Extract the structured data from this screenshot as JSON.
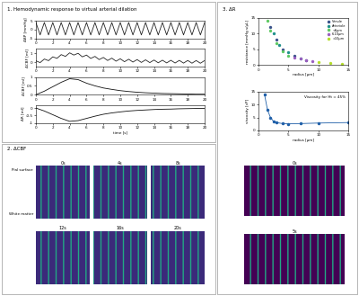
{
  "panels": {
    "p1": "1. Hemodynamic response to virtual arterial dilation",
    "p2": "2. ΔCBF",
    "p3": "3. ΔR"
  },
  "images": {
    "p2_titles": [
      "0s",
      "4s",
      "8s",
      "12s",
      "16s",
      "20s"
    ],
    "p2_labels": [
      "Pial surface",
      "White matter"
    ],
    "p3_titles": [
      "0s",
      "5s"
    ]
  },
  "chart_data": [
    {
      "type": "line",
      "y_label": "ΔBP [mmHg]",
      "color": "#222222",
      "x": [
        0,
        0.5,
        1,
        1.5,
        2,
        2.5,
        3,
        3.5,
        4,
        4.5,
        5,
        5.5,
        6,
        6.5,
        7,
        7.5,
        8,
        8.5,
        9,
        9.5,
        10,
        10.5,
        11,
        11.5,
        12,
        12.5,
        13,
        13.5,
        14,
        14.5,
        15,
        15.5,
        16,
        16.5,
        17,
        17.5,
        18,
        18.5,
        19,
        19.5,
        20
      ],
      "values": [
        4,
        -3,
        4,
        -3,
        4,
        -3,
        4,
        -3,
        4,
        -3,
        4,
        -3,
        4,
        -3,
        4,
        -3,
        4,
        -3,
        4,
        -3,
        4,
        -3,
        4,
        -3,
        4,
        -3,
        4,
        -3,
        4,
        -3,
        4,
        -3,
        4,
        -3,
        4,
        -3,
        4,
        -3,
        4,
        -3,
        4
      ],
      "xlim": [
        0,
        20
      ],
      "xticks": [
        0,
        2,
        4,
        6,
        8,
        10,
        12,
        14,
        16,
        18,
        20
      ],
      "ylim": [
        -5,
        5
      ],
      "yticks": [
        -5,
        0,
        5
      ]
    },
    {
      "type": "line",
      "y_label": "ΔCBF [ml]",
      "color": "#222222",
      "x": [
        0,
        0.5,
        1,
        1.5,
        2,
        2.5,
        3,
        3.5,
        4,
        4.5,
        5,
        5.5,
        6,
        6.5,
        7,
        7.5,
        8,
        8.5,
        9,
        9.5,
        10,
        10.5,
        11,
        11.5,
        12,
        12.5,
        13,
        13.5,
        14,
        14.5,
        15,
        15.5,
        16,
        16.5,
        17,
        17.5,
        18,
        18.5,
        19,
        19.5,
        20
      ],
      "values": [
        0.15,
        -0.05,
        0.35,
        0.17,
        0.6,
        0.43,
        0.85,
        0.65,
        1.05,
        0.8,
        1.0,
        0.6,
        0.8,
        0.42,
        0.65,
        0.29,
        0.53,
        0.19,
        0.45,
        0.11,
        0.38,
        0.05,
        0.33,
        0.01,
        0.29,
        -0.03,
        0.26,
        -0.05,
        0.24,
        -0.07,
        0.22,
        -0.085,
        0.21,
        -0.095,
        0.2,
        -0.105,
        0.19,
        -0.115,
        0.18,
        -0.12,
        0.18
      ],
      "xlim": [
        0,
        20
      ],
      "xticks": [
        0,
        2,
        4,
        6,
        8,
        10,
        12,
        14,
        16,
        18,
        20
      ],
      "ylim": [
        -0.5,
        1.5
      ],
      "yticks": [
        0,
        1
      ]
    },
    {
      "type": "line",
      "y_label": "ΔCBF [ml]",
      "color": "#111111",
      "x": [
        0,
        1,
        2,
        3,
        4,
        5,
        6,
        7,
        8,
        9,
        10,
        11,
        12,
        13,
        14,
        15,
        16,
        17,
        18,
        19,
        20
      ],
      "values": [
        0,
        0.2,
        0.45,
        0.7,
        0.9,
        0.85,
        0.65,
        0.5,
        0.38,
        0.3,
        0.23,
        0.18,
        0.14,
        0.11,
        0.09,
        0.07,
        0.06,
        0.05,
        0.04,
        0.03,
        0.03
      ],
      "xlim": [
        0,
        20
      ],
      "xticks": [
        0,
        2,
        4,
        6,
        8,
        10,
        12,
        14,
        16,
        18,
        20
      ],
      "ylim": [
        0,
        1
      ],
      "yticks": [
        0,
        0.5,
        1
      ]
    },
    {
      "type": "line",
      "y_label": "ΔR [ml]",
      "x_label": "time [s]",
      "color": "#111111",
      "x": [
        0,
        1,
        2,
        3,
        4,
        5,
        6,
        7,
        8,
        9,
        10,
        11,
        12,
        13,
        14,
        15,
        16,
        17,
        18,
        19,
        20
      ],
      "values": [
        0,
        -0.2,
        -0.45,
        -0.7,
        -0.9,
        -0.85,
        -0.7,
        -0.55,
        -0.42,
        -0.33,
        -0.26,
        -0.2,
        -0.16,
        -0.13,
        -0.1,
        -0.08,
        -0.07,
        -0.05,
        -0.04,
        -0.03,
        -0.03
      ],
      "xlim": [
        0,
        20
      ],
      "xticks": [
        0,
        2,
        4,
        6,
        8,
        10,
        12,
        14,
        16,
        18,
        20
      ],
      "ylim": [
        -1,
        0.2
      ],
      "yticks": [
        -1,
        -0.5,
        0
      ]
    },
    {
      "type": "scatter",
      "x_label": "radius [µm]",
      "y_label": "resistance [mmHg s/µL]",
      "legend": "upper right",
      "series": [
        {
          "name": "Venule",
          "color": "#3b528b",
          "x": [
            2,
            3,
            4,
            6,
            8
          ],
          "values": [
            12,
            8,
            5,
            3,
            1.5
          ]
        },
        {
          "name": "Arteriole",
          "color": "#21918c",
          "x": [
            2.5,
            3.5,
            5,
            7
          ],
          "values": [
            10,
            6.5,
            4,
            2
          ]
        },
        {
          "name": "<6µm",
          "color": "#5ec962",
          "x": [
            1.5,
            2,
            3,
            4,
            5
          ],
          "values": [
            14,
            11,
            7,
            4.5,
            3
          ]
        },
        {
          "name": "6-10µm",
          "color": "#9b5fc0",
          "x": [
            6,
            7,
            8,
            9
          ],
          "values": [
            2.5,
            2,
            1.6,
            1.2
          ]
        },
        {
          "name": ">10µm",
          "color": "#b5de2b",
          "x": [
            10,
            12,
            14
          ],
          "values": [
            1,
            0.7,
            0.5
          ]
        }
      ],
      "xlim": [
        0,
        15
      ],
      "xticks": [
        0,
        5,
        10,
        15
      ],
      "ylim": [
        0,
        15
      ],
      "yticks": [
        0,
        5,
        10,
        15
      ]
    },
    {
      "type": "line",
      "x_label": "radius [µm]",
      "y_label": "viscosity [cP]",
      "annotation": "Viscosity for Ht = 45%",
      "color": "#1f5fa8",
      "marker": "o",
      "x": [
        1,
        1.5,
        2,
        2.5,
        3,
        4,
        5,
        7,
        10,
        15
      ],
      "values": [
        14,
        8,
        5,
        3.5,
        3,
        2.6,
        2.5,
        2.6,
        2.8,
        3
      ],
      "xlim": [
        0,
        15
      ],
      "xticks": [
        0,
        5,
        10,
        15
      ],
      "ylim": [
        0,
        15
      ],
      "yticks": [
        0,
        5,
        10,
        15
      ]
    }
  ]
}
